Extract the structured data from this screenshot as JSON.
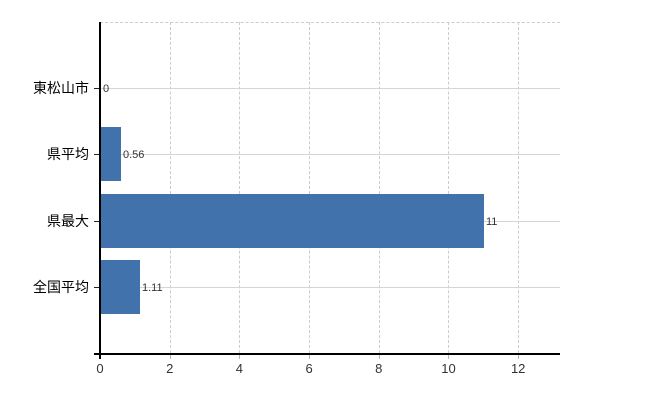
{
  "chart_data": {
    "type": "bar",
    "orientation": "horizontal",
    "title": "",
    "xlabel": "",
    "ylabel": "",
    "categories": [
      "東松山市",
      "県平均",
      "県最大",
      "全国平均"
    ],
    "values": [
      0,
      0.56,
      11,
      1.11
    ],
    "value_labels": [
      "0",
      "0.56",
      "11",
      "1.11"
    ],
    "xticks": [
      0,
      2,
      4,
      6,
      8,
      10,
      12
    ],
    "xtick_labels": [
      "0",
      "2",
      "4",
      "6",
      "8",
      "10",
      "12"
    ],
    "xlim": [
      0,
      13.2
    ],
    "legend": "none",
    "grid": {
      "vertical": "dashed",
      "horizontal": "solid",
      "top_border": "dashed"
    },
    "colors": {
      "bar": "#4272ab",
      "grid_solid": "#d5d5d5",
      "grid_dashed": "#cccccc",
      "axis": "#000000",
      "minor_tick": "#b5b5b5",
      "category_tick": "#222222",
      "value_label": "#333333",
      "category_label": "#000000",
      "xtick_label": "#333333",
      "background": "#ffffff"
    }
  }
}
